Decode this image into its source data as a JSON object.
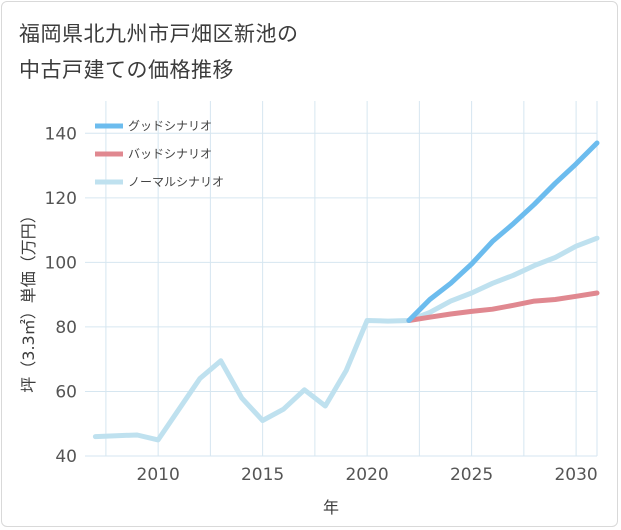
{
  "title": {
    "line1": "福岡県北九州市戸畑区新池の",
    "line2": "中古戸建ての価格推移"
  },
  "colors": {
    "good": "#6cbcee",
    "bad": "#e08890",
    "normal": "#bfe1ef",
    "grid": "#d6e6f0"
  },
  "chart_data": {
    "type": "line",
    "xlabel": "年",
    "ylabel": "坪（3.3㎡）単価（万円）",
    "xlim": [
      2006.5,
      2031
    ],
    "ylim": [
      40,
      150
    ],
    "x_ticks": [
      2010,
      2015,
      2020,
      2025,
      2030
    ],
    "y_ticks": [
      40,
      60,
      80,
      100,
      120,
      140
    ],
    "grid": true,
    "legend_position": "top-left",
    "series": [
      {
        "name": "グッドシナリオ",
        "key": "good",
        "x": [
          2022,
          2023,
          2024,
          2025,
          2026,
          2027,
          2028,
          2029,
          2030,
          2031
        ],
        "y": [
          82.0,
          88.5,
          93.5,
          99.5,
          106.5,
          112.0,
          118.0,
          124.5,
          130.5,
          137.0
        ]
      },
      {
        "name": "バッドシナリオ",
        "key": "bad",
        "x": [
          2022,
          2023,
          2024,
          2025,
          2026,
          2027,
          2028,
          2029,
          2030,
          2031
        ],
        "y": [
          82.0,
          83.0,
          84.0,
          84.8,
          85.5,
          86.7,
          88.0,
          88.5,
          89.5,
          90.5
        ]
      },
      {
        "name": "ノーマルシナリオ",
        "key": "normal",
        "x": [
          2007,
          2008,
          2009,
          2010,
          2011,
          2012,
          2013,
          2014,
          2015,
          2016,
          2017,
          2018,
          2019,
          2020,
          2021,
          2022,
          2023,
          2024,
          2025,
          2026,
          2027,
          2028,
          2029,
          2030,
          2031
        ],
        "y": [
          46.0,
          46.3,
          46.5,
          45.0,
          54.5,
          64.0,
          69.5,
          58.0,
          51.0,
          54.5,
          60.5,
          55.5,
          66.5,
          82.0,
          81.8,
          82.0,
          84.5,
          88.0,
          90.5,
          93.5,
          96.0,
          99.0,
          101.5,
          105.0,
          107.5
        ]
      }
    ]
  }
}
